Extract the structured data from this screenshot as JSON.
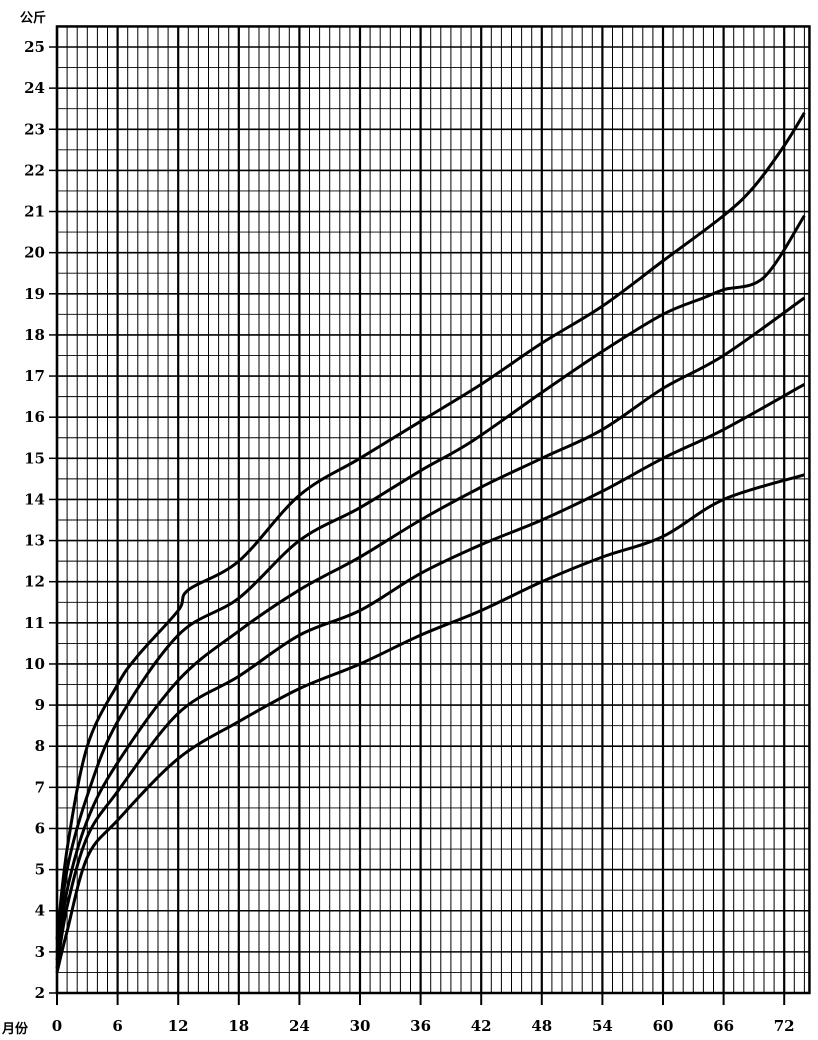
{
  "chart_data": {
    "type": "line",
    "title": "",
    "xlabel": "月份",
    "ylabel": "公斤",
    "xlim": [
      0,
      74.5
    ],
    "ylim": [
      2,
      25.5
    ],
    "xticks": [
      0,
      6,
      12,
      18,
      24,
      30,
      36,
      42,
      48,
      54,
      60,
      66,
      72
    ],
    "yticks": [
      2,
      3,
      4,
      5,
      6,
      7,
      8,
      9,
      10,
      11,
      12,
      13,
      14,
      15,
      16,
      17,
      18,
      19,
      20,
      21,
      22,
      23,
      24,
      25
    ],
    "grid": true,
    "line_color": "#000000",
    "series": [
      {
        "x": [
          0,
          1,
          3,
          6,
          8,
          12,
          13,
          18,
          24,
          30,
          36,
          42,
          48,
          54,
          60,
          66,
          69,
          72,
          74
        ],
        "y": [
          3.3,
          5.5,
          8.0,
          9.5,
          10.2,
          11.3,
          11.8,
          12.5,
          14.1,
          15.0,
          15.9,
          16.8,
          17.8,
          18.7,
          19.8,
          20.9,
          21.6,
          22.6,
          23.4
        ]
      },
      {
        "x": [
          0,
          1,
          3,
          6,
          12,
          18,
          24,
          30,
          36,
          41,
          48,
          54,
          60,
          64,
          66,
          70,
          74
        ],
        "y": [
          3.0,
          5.0,
          6.8,
          8.6,
          10.7,
          11.6,
          13.0,
          13.8,
          14.7,
          15.4,
          16.6,
          17.6,
          18.5,
          18.9,
          19.1,
          19.4,
          20.9
        ]
      },
      {
        "x": [
          0,
          1,
          3,
          6,
          12,
          18,
          24,
          30,
          36,
          42,
          48,
          54,
          60,
          66,
          74
        ],
        "y": [
          2.8,
          4.5,
          6.2,
          7.6,
          9.6,
          10.8,
          11.8,
          12.6,
          13.5,
          14.3,
          15.0,
          15.7,
          16.7,
          17.5,
          18.9
        ]
      },
      {
        "x": [
          0,
          1,
          3,
          6,
          12,
          18,
          24,
          30,
          36,
          42,
          48,
          54,
          60,
          66,
          74
        ],
        "y": [
          2.6,
          4.1,
          5.8,
          6.9,
          8.8,
          9.7,
          10.7,
          11.3,
          12.2,
          12.9,
          13.5,
          14.2,
          15.0,
          15.7,
          16.8
        ]
      },
      {
        "x": [
          0,
          1,
          3,
          6,
          12,
          18,
          24,
          30,
          36,
          42,
          48,
          54,
          60,
          66,
          74
        ],
        "y": [
          2.5,
          3.5,
          5.3,
          6.2,
          7.7,
          8.6,
          9.4,
          10.0,
          10.7,
          11.3,
          12.0,
          12.6,
          13.1,
          14.0,
          14.6
        ]
      }
    ]
  }
}
